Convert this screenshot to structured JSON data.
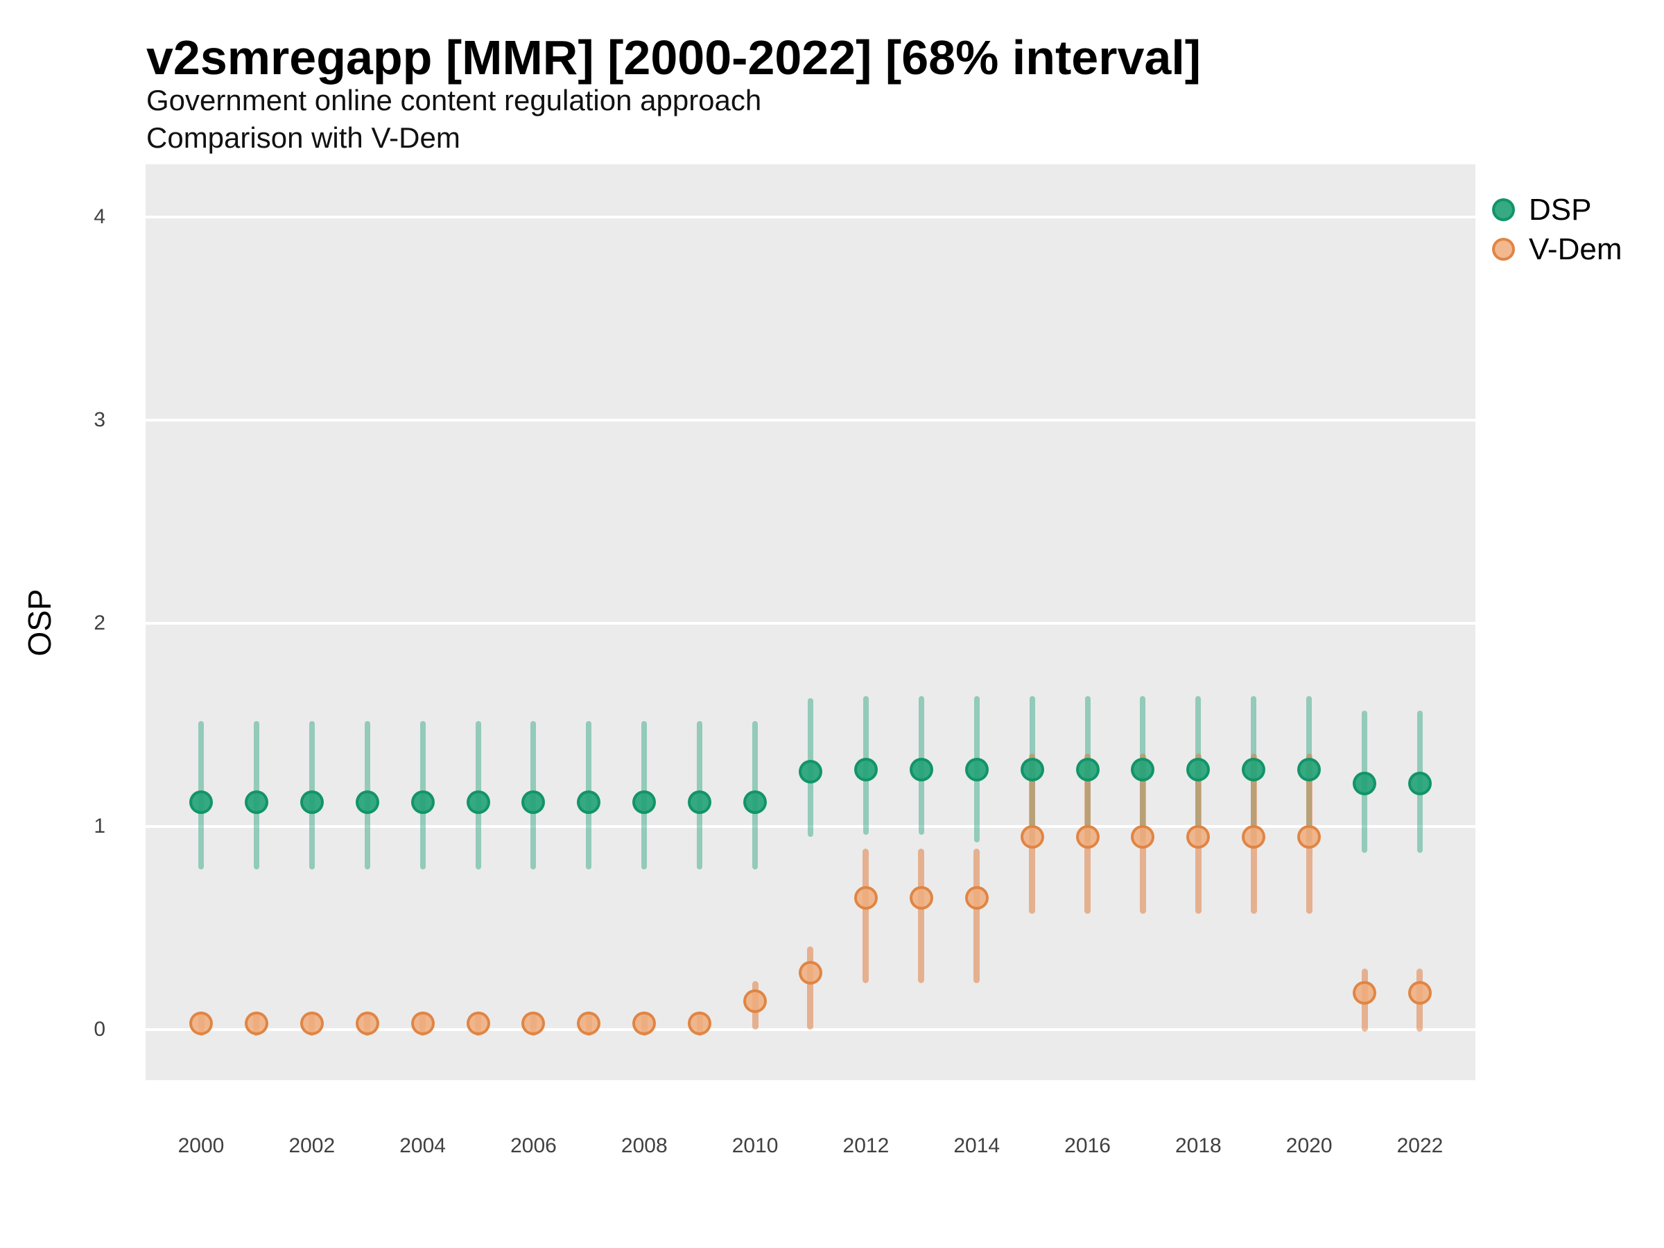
{
  "title": "v2smregapp [MMR] [2000-2022] [68% interval]",
  "subtitle_line1": "Government online content regulation approach",
  "subtitle_line2": "Comparison with V-Dem",
  "y_axis_title": "OSP",
  "legend": {
    "items": [
      {
        "label": "DSP"
      },
      {
        "label": "V-Dem"
      }
    ]
  },
  "colors": {
    "panel_background": "#EBEBEB",
    "gridline": "#FFFFFF",
    "dsp_point_fill": "rgba(36,163,120,0.92)",
    "dsp_point_stroke": "rgba(17,146,102,0.95)",
    "dsp_interval": "rgba(27,158,119,0.42)",
    "vdem_point_fill": "rgba(240,173,125,0.85)",
    "vdem_point_stroke": "rgba(222,130,64,0.95)",
    "vdem_interval": "rgba(224,118,51,0.5)",
    "tick_text": "#404040",
    "title_text": "#000000"
  },
  "chart_data": {
    "type": "pointrange",
    "title": "v2smregapp [MMR] [2000-2022] [68% interval]",
    "subtitle": [
      "Government online content regulation approach",
      "Comparison with V-Dem"
    ],
    "xlabel": "",
    "ylabel": "OSP",
    "x": [
      2000,
      2001,
      2002,
      2003,
      2004,
      2005,
      2006,
      2007,
      2008,
      2009,
      2010,
      2011,
      2012,
      2013,
      2014,
      2015,
      2016,
      2017,
      2018,
      2019,
      2020,
      2021,
      2022
    ],
    "x_ticks": [
      2000,
      2002,
      2004,
      2006,
      2008,
      2010,
      2012,
      2014,
      2016,
      2018,
      2020,
      2022
    ],
    "y_ticks": [
      0,
      1,
      2,
      3,
      4
    ],
    "ylim": [
      -0.25,
      4.26
    ],
    "grid": "major-horizontal-only",
    "legend_position": "right-top",
    "interval_level": "68%",
    "series": [
      {
        "name": "DSP",
        "values": [
          1.12,
          1.12,
          1.12,
          1.12,
          1.12,
          1.12,
          1.12,
          1.12,
          1.12,
          1.12,
          1.12,
          1.27,
          1.28,
          1.28,
          1.28,
          1.28,
          1.28,
          1.28,
          1.28,
          1.28,
          1.28,
          1.21,
          1.21
        ],
        "lower": [
          0.79,
          0.79,
          0.79,
          0.79,
          0.79,
          0.79,
          0.79,
          0.79,
          0.79,
          0.79,
          0.79,
          0.95,
          0.96,
          0.96,
          0.92,
          0.92,
          0.92,
          0.92,
          0.92,
          0.92,
          0.92,
          0.87,
          0.87
        ],
        "upper": [
          1.52,
          1.52,
          1.52,
          1.52,
          1.52,
          1.52,
          1.52,
          1.52,
          1.52,
          1.52,
          1.52,
          1.63,
          1.64,
          1.64,
          1.64,
          1.64,
          1.64,
          1.64,
          1.64,
          1.64,
          1.64,
          1.57,
          1.57
        ]
      },
      {
        "name": "V-Dem",
        "values": [
          0.03,
          0.03,
          0.03,
          0.03,
          0.03,
          0.03,
          0.03,
          0.03,
          0.03,
          0.03,
          0.14,
          0.28,
          0.65,
          0.65,
          0.65,
          0.95,
          0.95,
          0.95,
          0.95,
          0.95,
          0.95,
          0.18,
          0.18
        ],
        "lower": [
          -0.03,
          -0.03,
          -0.03,
          -0.03,
          -0.03,
          -0.03,
          -0.03,
          -0.03,
          -0.03,
          -0.03,
          0.0,
          0.0,
          0.23,
          0.23,
          0.23,
          0.57,
          0.57,
          0.57,
          0.57,
          0.57,
          0.57,
          -0.01,
          -0.01
        ],
        "upper": [
          0.09,
          0.09,
          0.09,
          0.09,
          0.09,
          0.09,
          0.09,
          0.09,
          0.09,
          0.09,
          0.24,
          0.41,
          0.89,
          0.89,
          0.89,
          1.36,
          1.36,
          1.36,
          1.36,
          1.36,
          1.36,
          0.3,
          0.3
        ]
      }
    ]
  }
}
